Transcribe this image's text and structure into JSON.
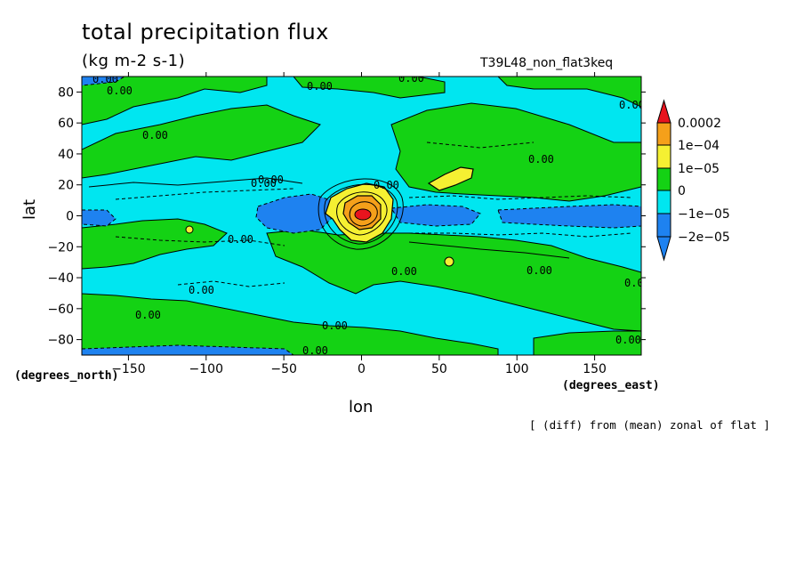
{
  "chart_data": {
    "type": "heatmap",
    "title": "total precipitation flux",
    "units": "(kg m-2 s-1)",
    "run_label": "T39L48_non_flat3keq",
    "note": "[ (diff) from (mean) zonal of flat ]",
    "xlabel": "lon",
    "ylabel": "lat",
    "x_units_label": "(degrees_east)",
    "y_units_label": "(degrees_north)",
    "xlim": [
      -180,
      180
    ],
    "ylim": [
      -90,
      90
    ],
    "x_ticks": [
      -150,
      -100,
      -50,
      0,
      50,
      100,
      150
    ],
    "y_ticks": [
      -80,
      -60,
      -40,
      -20,
      0,
      20,
      40,
      60,
      80
    ],
    "x_tick_labels": [
      "−150",
      "−100",
      "−50",
      "0",
      "50",
      "100",
      "150"
    ],
    "y_tick_labels": [
      "−80",
      "−60",
      "−40",
      "−20",
      "0",
      "20",
      "40",
      "60",
      "80"
    ],
    "contour_label": "0.00",
    "levels": [
      {
        "label": "0.0002",
        "color": "#e8141e"
      },
      {
        "label": "1e−04",
        "color": "#f5a01a"
      },
      {
        "label": "1e−05",
        "color": "#f5f032"
      },
      {
        "label": "0",
        "color": "#14d214"
      },
      {
        "label": "−1e−05",
        "color": "#00e6f0"
      },
      {
        "label": "−2e−05",
        "color": "#1e82f0"
      }
    ],
    "features": {
      "max_center": [
        0,
        2
      ],
      "min_region": "equatorial band, lon -60 to -20",
      "positive_patch": [
        55,
        25
      ]
    }
  }
}
